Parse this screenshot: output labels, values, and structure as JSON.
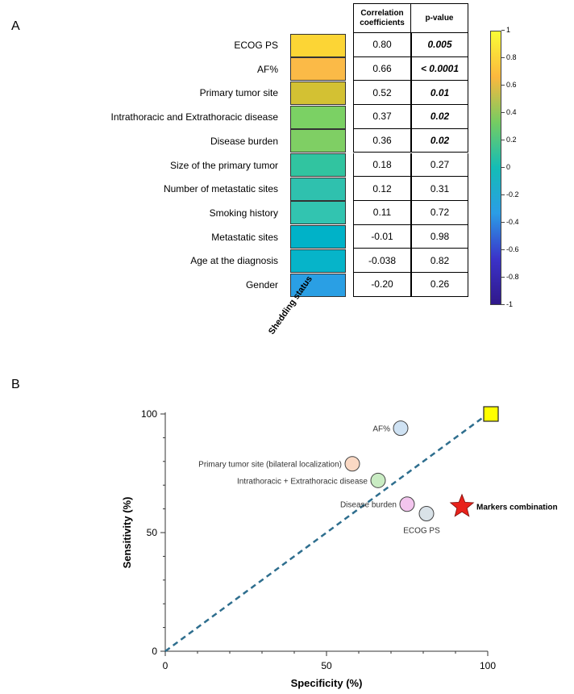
{
  "panels": {
    "a": "A",
    "b": "B"
  },
  "heatmap": {
    "header_corr": "Correlation coefficients",
    "header_p": "p-value",
    "xlabel": "Shedding status",
    "rows": [
      {
        "label": "ECOG PS",
        "coef": "0.80",
        "p": "0.005",
        "significant": true,
        "color": "#fcd535"
      },
      {
        "label": "AF%",
        "coef": "0.66",
        "p": "< 0.0001",
        "significant": true,
        "color": "#fbba47"
      },
      {
        "label": "Primary tumor site",
        "coef": "0.52",
        "p": "0.01",
        "significant": true,
        "color": "#d3c133"
      },
      {
        "label": "Intrathoracic and Extrathoracic disease",
        "coef": "0.37",
        "p": "0.02",
        "significant": true,
        "color": "#7bd164"
      },
      {
        "label": "Disease burden",
        "coef": "0.36",
        "p": "0.02",
        "significant": true,
        "color": "#7fcf64"
      },
      {
        "label": "Size of the primary tumor",
        "coef": "0.18",
        "p": "0.27",
        "significant": false,
        "color": "#31c4a0"
      },
      {
        "label": "Number of metastatic sites",
        "coef": "0.12",
        "p": "0.31",
        "significant": false,
        "color": "#2fc1ae"
      },
      {
        "label": "Smoking history",
        "coef": "0.11",
        "p": "0.72",
        "significant": false,
        "color": "#32c4b0"
      },
      {
        "label": "Metastatic sites",
        "coef": "-0.01",
        "p": "0.98",
        "significant": false,
        "color": "#00b2c8"
      },
      {
        "label": "Age at the diagnosis",
        "coef": "-0.038",
        "p": "0.82",
        "significant": false,
        "color": "#06b4c9"
      },
      {
        "label": "Gender",
        "coef": "-0.20",
        "p": "0.26",
        "significant": false,
        "color": "#2a9fe4"
      }
    ],
    "colorbar": {
      "ticks": [
        "1",
        "0.8",
        "0.6",
        "0.4",
        "0.2",
        "0",
        "-0.2",
        "-0.4",
        "-0.6",
        "-0.8",
        "-1"
      ],
      "colors": [
        "#fafd36",
        "#fbb83e",
        "#75cc62",
        "#14bcb6",
        "#2b9de6",
        "#3b33c9",
        "#30188a"
      ]
    }
  },
  "chart_data": {
    "type": "scatter",
    "xlabel": "Specificity (%)",
    "ylabel": "Sensitivity (%)",
    "xlim": [
      0,
      100
    ],
    "ylim": [
      0,
      100
    ],
    "xticks": [
      "0",
      "50",
      "100"
    ],
    "yticks": [
      "0",
      "50",
      "100"
    ],
    "reference_line": {
      "from": [
        0,
        0
      ],
      "to": [
        100,
        100
      ],
      "style": "dashed",
      "color": "#2e6e8e"
    },
    "points": [
      {
        "label": "AF%",
        "x": 73,
        "y": 94,
        "color": "#cfe2f3",
        "shape": "circle",
        "label_side": "left"
      },
      {
        "label": "Primary tumor site (bilateral localization)",
        "x": 58,
        "y": 79,
        "color": "#fbd9c4",
        "shape": "circle",
        "label_side": "left"
      },
      {
        "label": "Intrathoracic + Extrathoracic disease",
        "x": 66,
        "y": 72,
        "color": "#c9ecc3",
        "shape": "circle",
        "label_side": "left"
      },
      {
        "label": "Disease burden",
        "x": 75,
        "y": 62,
        "color": "#f3c5ee",
        "shape": "circle",
        "label_side": "left"
      },
      {
        "label": "ECOG PS",
        "x": 81,
        "y": 58,
        "color": "#d9e2e8",
        "shape": "circle",
        "label_side": "below"
      },
      {
        "label": "Markers combination",
        "x": 92,
        "y": 61,
        "color": "#e8221b",
        "shape": "star",
        "label_side": "right"
      },
      {
        "label": "",
        "x": 101,
        "y": 100,
        "color": "#ffff00",
        "shape": "square",
        "label_side": "none"
      }
    ]
  }
}
